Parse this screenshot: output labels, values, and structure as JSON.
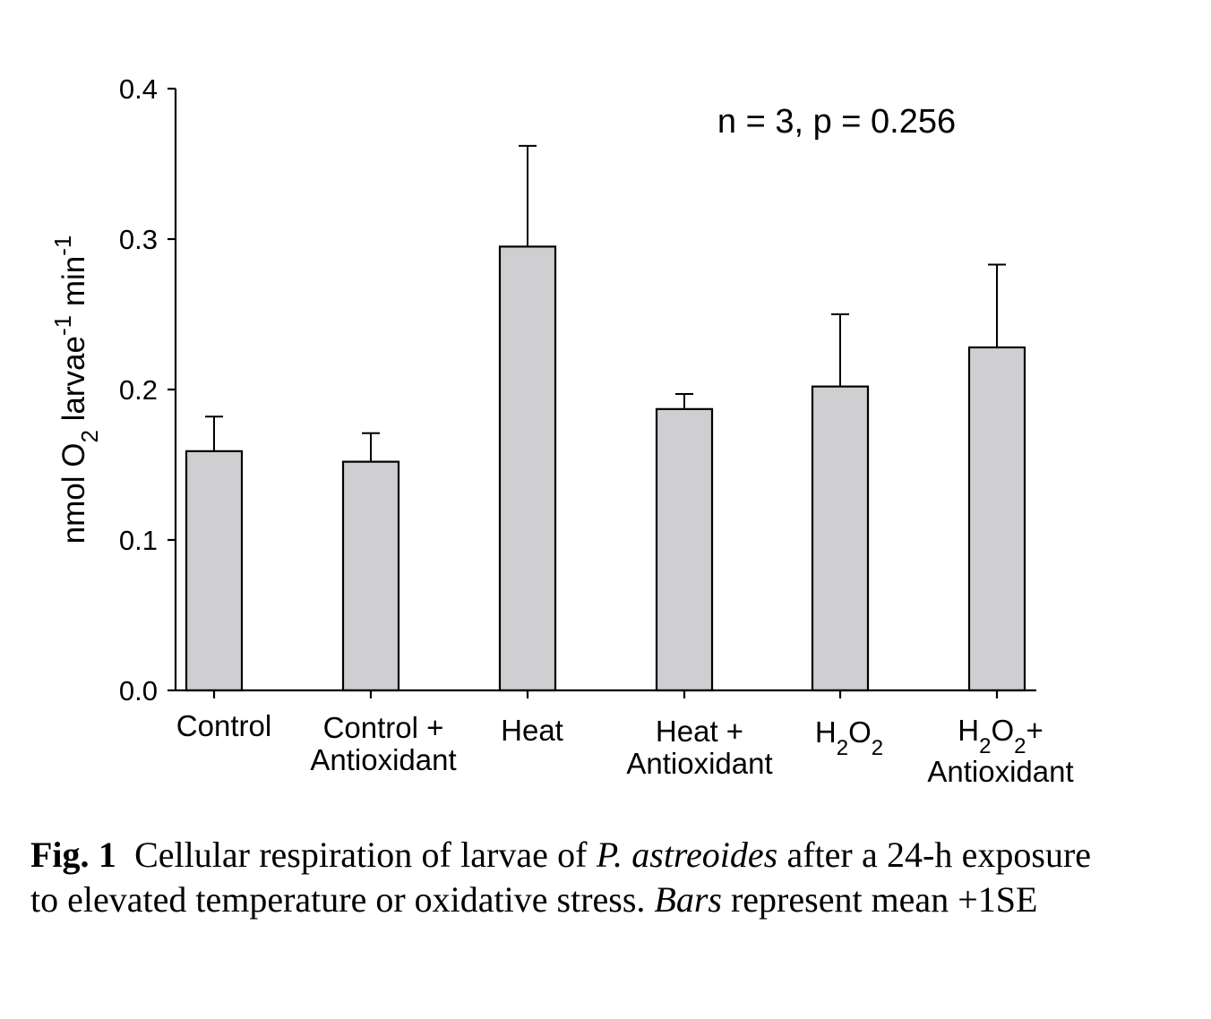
{
  "chart_data": {
    "type": "bar",
    "categories": [
      [
        "Control"
      ],
      [
        "Control +",
        "Antioxidant"
      ],
      [
        "Heat"
      ],
      [
        "Heat +",
        "Antioxidant"
      ],
      [
        "H|2|O|2"
      ],
      [
        "H|2|O|2|+",
        "Antioxidant"
      ]
    ],
    "values": [
      0.159,
      0.152,
      0.295,
      0.187,
      0.202,
      0.228
    ],
    "error_upper": [
      0.182,
      0.171,
      0.362,
      0.197,
      0.25,
      0.283
    ],
    "ylim": [
      0.0,
      0.4
    ],
    "yticks": [
      "0.0",
      "0.1",
      "0.2",
      "0.3",
      "0.4"
    ],
    "ytick_values": [
      0.0,
      0.1,
      0.2,
      0.3,
      0.4
    ],
    "ylabel": {
      "parts": [
        "nmol O",
        "2",
        " larvae",
        "-1",
        " min",
        "-1"
      ]
    },
    "annotation": "n = 3, p = 0.256",
    "bar_color": "#cfcfd1",
    "grid": false
  },
  "caption": {
    "figure_label": "Fig. 1",
    "text_before_species": "Cellular respiration of larvae of ",
    "species": "P. astreoides",
    "text_middle": " after a 24-h exposure to elevated temperature or oxidative stress. ",
    "bars_word": "Bars",
    "text_after": " represent mean +1SE"
  }
}
